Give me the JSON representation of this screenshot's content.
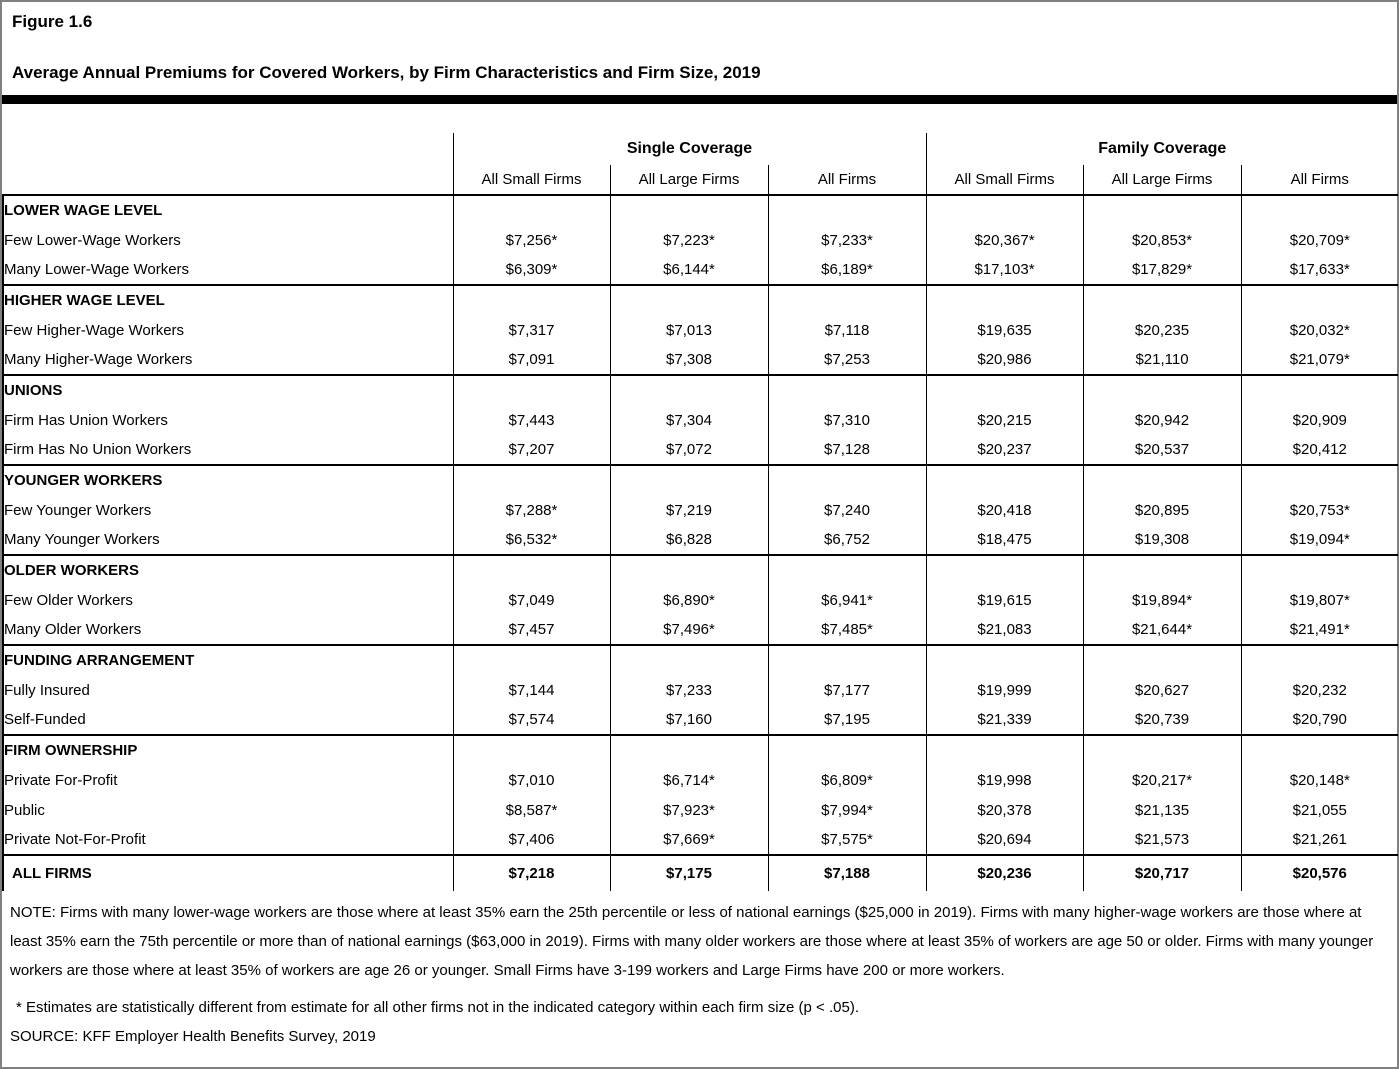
{
  "figure": {
    "label": "Figure 1.6",
    "title": "Average Annual Premiums for Covered Workers, by Firm Characteristics and Firm Size, 2019"
  },
  "table": {
    "column_groups": [
      {
        "label": "Single Coverage",
        "columns": [
          "All Small Firms",
          "All Large Firms",
          "All Firms"
        ]
      },
      {
        "label": "Family Coverage",
        "columns": [
          "All Small Firms",
          "All Large Firms",
          "All Firms"
        ]
      }
    ],
    "sections": [
      {
        "header": "LOWER WAGE LEVEL",
        "rows": [
          {
            "label": "Few Lower-Wage Workers",
            "values": [
              "$7,256*",
              "$7,223*",
              "$7,233*",
              "$20,367*",
              "$20,853*",
              "$20,709*"
            ]
          },
          {
            "label": "Many Lower-Wage Workers",
            "values": [
              "$6,309*",
              "$6,144*",
              "$6,189*",
              "$17,103*",
              "$17,829*",
              "$17,633*"
            ]
          }
        ]
      },
      {
        "header": "HIGHER WAGE LEVEL",
        "rows": [
          {
            "label": "Few Higher-Wage Workers",
            "values": [
              "$7,317",
              "$7,013",
              "$7,118",
              "$19,635",
              "$20,235",
              "$20,032*"
            ]
          },
          {
            "label": "Many Higher-Wage Workers",
            "values": [
              "$7,091",
              "$7,308",
              "$7,253",
              "$20,986",
              "$21,110",
              "$21,079*"
            ]
          }
        ]
      },
      {
        "header": "UNIONS",
        "rows": [
          {
            "label": "Firm Has Union Workers",
            "values": [
              "$7,443",
              "$7,304",
              "$7,310",
              "$20,215",
              "$20,942",
              "$20,909"
            ]
          },
          {
            "label": "Firm Has No Union Workers",
            "values": [
              "$7,207",
              "$7,072",
              "$7,128",
              "$20,237",
              "$20,537",
              "$20,412"
            ]
          }
        ]
      },
      {
        "header": "YOUNGER WORKERS",
        "rows": [
          {
            "label": "Few Younger Workers",
            "values": [
              "$7,288*",
              "$7,219",
              "$7,240",
              "$20,418",
              "$20,895",
              "$20,753*"
            ]
          },
          {
            "label": "Many Younger Workers",
            "values": [
              "$6,532*",
              "$6,828",
              "$6,752",
              "$18,475",
              "$19,308",
              "$19,094*"
            ]
          }
        ]
      },
      {
        "header": "OLDER WORKERS",
        "rows": [
          {
            "label": "Few Older Workers",
            "values": [
              "$7,049",
              "$6,890*",
              "$6,941*",
              "$19,615",
              "$19,894*",
              "$19,807*"
            ]
          },
          {
            "label": "Many Older Workers",
            "values": [
              "$7,457",
              "$7,496*",
              "$7,485*",
              "$21,083",
              "$21,644*",
              "$21,491*"
            ]
          }
        ]
      },
      {
        "header": "FUNDING ARRANGEMENT",
        "rows": [
          {
            "label": "Fully Insured",
            "values": [
              "$7,144",
              "$7,233",
              "$7,177",
              "$19,999",
              "$20,627",
              "$20,232"
            ]
          },
          {
            "label": "Self-Funded",
            "values": [
              "$7,574",
              "$7,160",
              "$7,195",
              "$21,339",
              "$20,739",
              "$20,790"
            ]
          }
        ]
      },
      {
        "header": "FIRM OWNERSHIP",
        "rows": [
          {
            "label": "Private For-Profit",
            "values": [
              "$7,010",
              "$6,714*",
              "$6,809*",
              "$19,998",
              "$20,217*",
              "$20,148*"
            ]
          },
          {
            "label": "Public",
            "values": [
              "$8,587*",
              "$7,923*",
              "$7,994*",
              "$20,378",
              "$21,135",
              "$21,055"
            ]
          },
          {
            "label": "Private Not-For-Profit",
            "values": [
              "$7,406",
              "$7,669*",
              "$7,575*",
              "$20,694",
              "$21,573",
              "$21,261"
            ]
          }
        ]
      }
    ],
    "total_row": {
      "label": "ALL FIRMS",
      "values": [
        "$7,218",
        "$7,175",
        "$7,188",
        "$20,236",
        "$20,717",
        "$20,576"
      ]
    }
  },
  "notes": {
    "note": "NOTE: Firms with many lower-wage workers are those where at least 35% earn the 25th percentile or less of national earnings ($25,000 in 2019). Firms with many higher-wage workers are those where at least 35% earn the 75th percentile or more than of national earnings ($63,000 in 2019). Firms with many older workers are those where at least 35% of workers are age 50 or older. Firms with many younger workers are those where at least 35% of workers are age 26 or younger. Small Firms have 3-199 workers and Large Firms have 200 or more workers.",
    "asterisk": "* Estimates are statistically different from estimate for all other firms not in the indicated category within each firm size (p < .05).",
    "source": "SOURCE: KFF Employer Health Benefits Survey, 2019"
  },
  "colors": {
    "text": "#000000",
    "background": "#ffffff",
    "divider": "#000000",
    "page_border": "#808080"
  }
}
